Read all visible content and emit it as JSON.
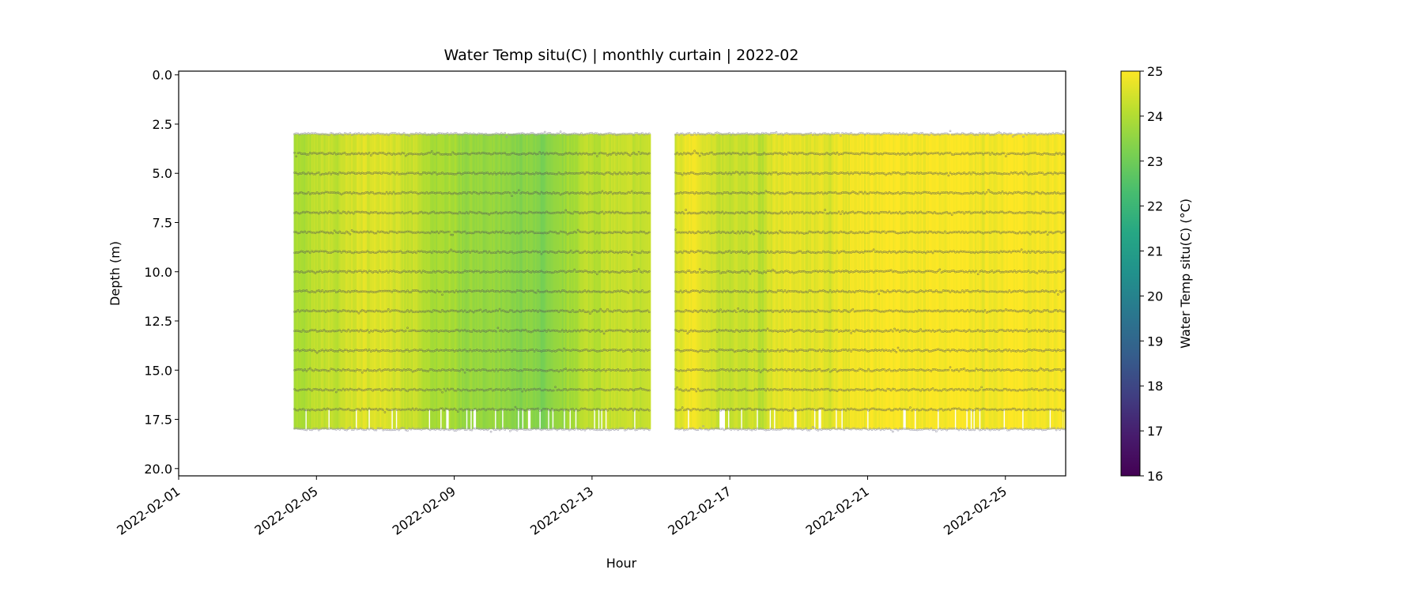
{
  "chart_data": {
    "type": "heatmap",
    "title": "Water Temp situ(C) | monthly curtain | 2022-02",
    "xlabel": "Hour",
    "ylabel": "Depth (m)",
    "x_unit": "days since 2022-02-01",
    "xlim": [
      0,
      25.75
    ],
    "ylim": [
      20.37,
      -0.19
    ],
    "x_ticks": [
      {
        "day": 0,
        "label": "2022-02-01"
      },
      {
        "day": 4,
        "label": "2022-02-05"
      },
      {
        "day": 8,
        "label": "2022-02-09"
      },
      {
        "day": 12,
        "label": "2022-02-13"
      },
      {
        "day": 16,
        "label": "2022-02-17"
      },
      {
        "day": 20,
        "label": "2022-02-21"
      },
      {
        "day": 24,
        "label": "2022-02-25"
      }
    ],
    "y_ticks": [
      {
        "v": 0,
        "label": "0.0"
      },
      {
        "v": 2.5,
        "label": "2.5"
      },
      {
        "v": 5,
        "label": "5.0"
      },
      {
        "v": 7.5,
        "label": "7.5"
      },
      {
        "v": 10,
        "label": "10.0"
      },
      {
        "v": 12.5,
        "label": "12.5"
      },
      {
        "v": 15,
        "label": "15.0"
      },
      {
        "v": 17.5,
        "label": "17.5"
      },
      {
        "v": 20,
        "label": "20.0"
      }
    ],
    "sensor_depths": [
      3,
      4,
      5,
      6,
      7,
      8,
      9,
      10,
      11,
      12,
      13,
      14,
      15,
      16,
      17,
      18
    ],
    "depth_range": [
      3,
      18
    ],
    "segments": [
      {
        "start": 3.34,
        "end": 13.7,
        "step": 0.25,
        "temps": [
          24.0,
          23.8,
          24.1,
          24.2,
          24.3,
          24.1,
          24.4,
          24.5,
          24.6,
          24.5,
          24.7,
          24.6,
          24.4,
          24.2,
          24.3,
          24.0,
          23.9,
          23.8,
          24.0,
          23.7,
          23.6,
          23.7,
          23.5,
          23.6,
          23.5,
          23.4,
          23.3,
          23.5,
          23.3,
          23.2,
          23.4,
          23.6,
          23.8,
          24.0,
          24.2,
          24.1,
          24.2,
          24.3,
          24.2,
          24.3,
          24.2,
          24.3
        ]
      },
      {
        "start": 14.4,
        "end": 25.75,
        "step": 0.25,
        "temps": [
          24.4,
          24.7,
          24.8,
          24.6,
          24.5,
          24.3,
          24.2,
          24.4,
          24.2,
          24.4,
          24.1,
          24.5,
          24.7,
          24.8,
          24.7,
          24.6,
          24.6,
          24.7,
          24.5,
          24.8,
          24.7,
          24.9,
          24.8,
          24.9,
          24.9,
          25.0,
          24.9,
          24.9,
          24.9,
          24.9,
          25.0,
          24.8,
          24.9,
          25.0,
          24.9,
          24.8,
          24.8,
          24.9,
          24.9,
          25.0,
          25.0,
          24.9,
          24.9,
          24.8,
          24.9,
          24.9
        ]
      }
    ],
    "colorbar": {
      "label": "Water Temp situ(C) (°C)",
      "colormap": "viridis",
      "range": [
        16,
        25
      ],
      "ticks": [
        "16",
        "17",
        "18",
        "19",
        "20",
        "21",
        "22",
        "23",
        "24",
        "25"
      ]
    }
  }
}
